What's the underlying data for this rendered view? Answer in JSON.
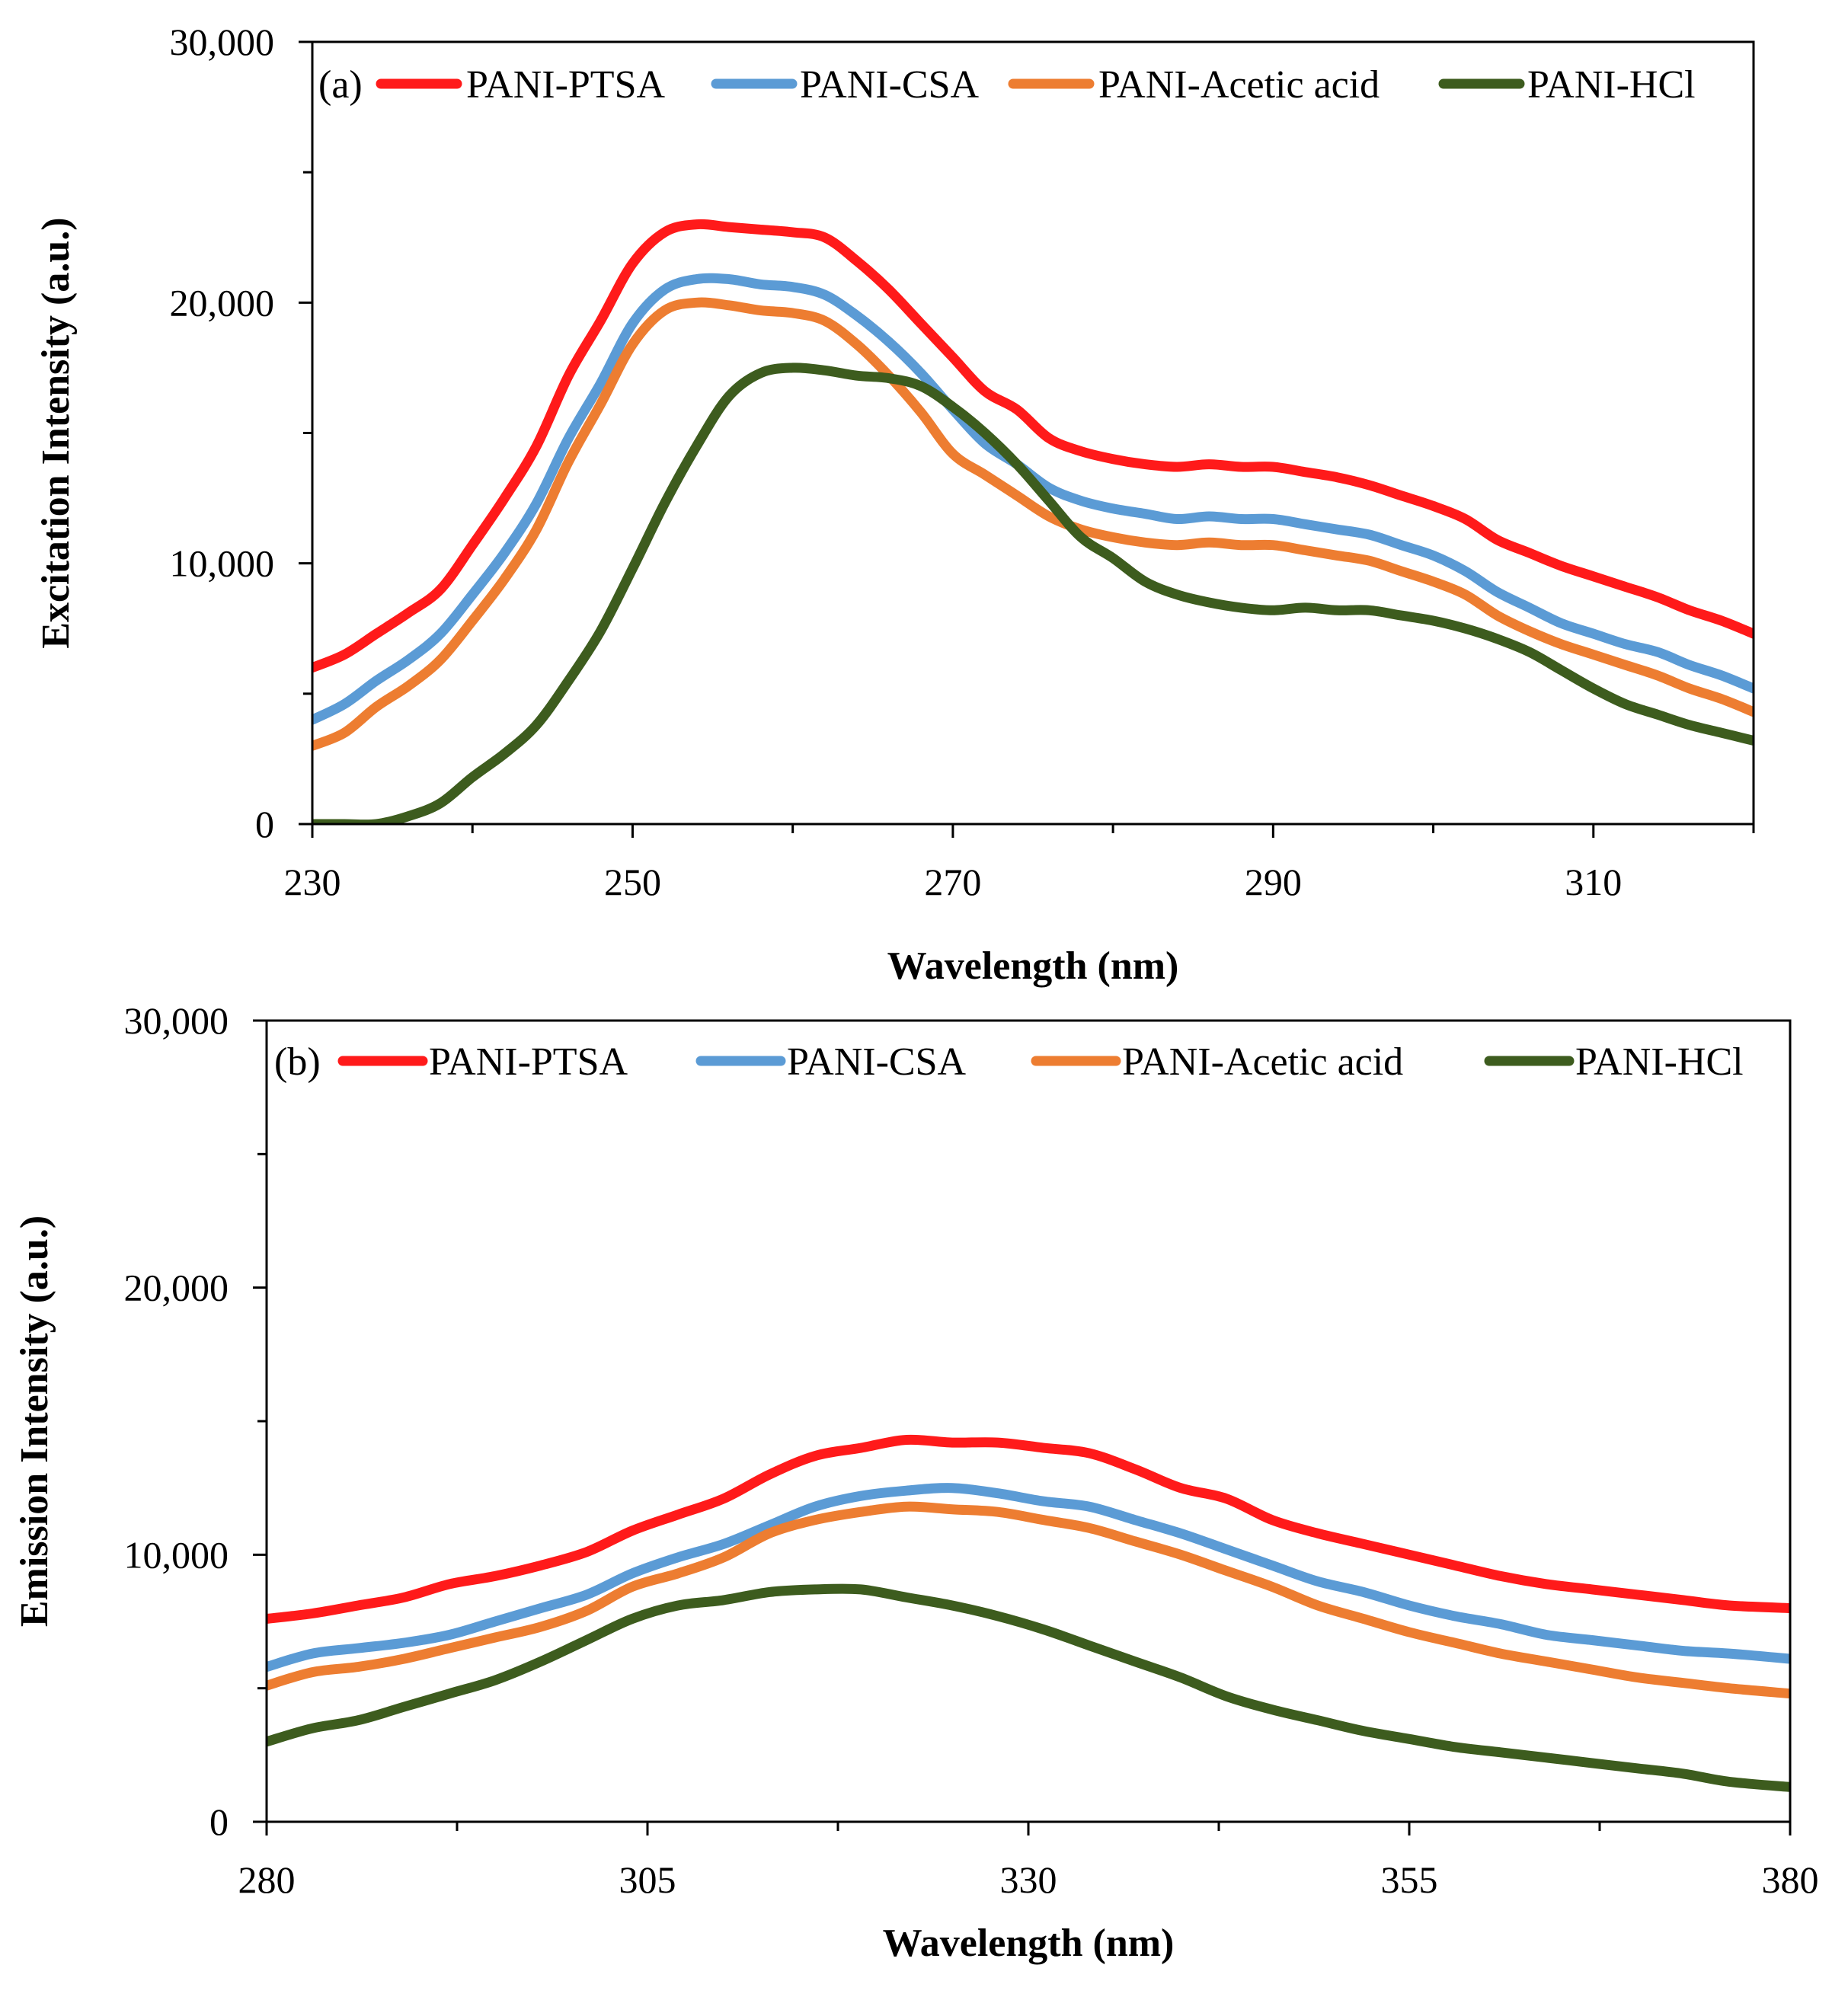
{
  "chart_data": [
    {
      "panel_label": "(a)",
      "type": "line",
      "xlabel": "Wavelength (nm)",
      "ylabel": "Excitation Intensity (a.u.)",
      "xlim": [
        230,
        320
      ],
      "ylim": [
        0,
        30000
      ],
      "xticks": [
        230,
        250,
        270,
        290,
        310
      ],
      "xtick_labels": [
        "230",
        "250",
        "270",
        "290",
        "310"
      ],
      "yticks": [
        0,
        10000,
        20000,
        30000
      ],
      "ytick_labels": [
        "0",
        "10,000",
        "20,000",
        "30,000"
      ],
      "ygrid": false,
      "legend_position": "top",
      "series": [
        {
          "name": "PANI-PTSA",
          "color": "#ff1a1a",
          "x": [
            230,
            232,
            234,
            236,
            238,
            240,
            242,
            244,
            246,
            248,
            250,
            252,
            254,
            256,
            258,
            260,
            262,
            264,
            266,
            268,
            270,
            272,
            274,
            276,
            278,
            280,
            282,
            284,
            286,
            288,
            290,
            292,
            294,
            296,
            298,
            300,
            302,
            304,
            306,
            308,
            310,
            312,
            314,
            316,
            318,
            320
          ],
          "y": [
            6000,
            6500,
            7300,
            8100,
            9000,
            10700,
            12500,
            14500,
            17200,
            19300,
            21500,
            22700,
            23000,
            22900,
            22800,
            22700,
            22500,
            21600,
            20500,
            19200,
            17900,
            16600,
            15900,
            14800,
            14300,
            14000,
            13800,
            13700,
            13800,
            13700,
            13700,
            13500,
            13300,
            13000,
            12600,
            12200,
            11700,
            10900,
            10400,
            9900,
            9500,
            9100,
            8700,
            8200,
            7800,
            7300
          ]
        },
        {
          "name": "PANI-CSA",
          "color": "#5b9bd5",
          "x": [
            230,
            232,
            234,
            236,
            238,
            240,
            242,
            244,
            246,
            248,
            250,
            252,
            254,
            256,
            258,
            260,
            262,
            264,
            266,
            268,
            270,
            272,
            274,
            276,
            278,
            280,
            282,
            284,
            286,
            288,
            290,
            292,
            294,
            296,
            298,
            300,
            302,
            304,
            306,
            308,
            310,
            312,
            314,
            316,
            318,
            320
          ],
          "y": [
            4000,
            4600,
            5500,
            6300,
            7300,
            8800,
            10400,
            12300,
            14800,
            16900,
            19200,
            20500,
            20900,
            20900,
            20700,
            20600,
            20300,
            19500,
            18500,
            17300,
            15900,
            14600,
            13800,
            12900,
            12400,
            12100,
            11900,
            11700,
            11800,
            11700,
            11700,
            11500,
            11300,
            11100,
            10700,
            10300,
            9700,
            8900,
            8300,
            7700,
            7300,
            6900,
            6600,
            6100,
            5700,
            5200
          ]
        },
        {
          "name": "PANI-Acetic acid",
          "color": "#ed7d31",
          "x": [
            230,
            232,
            234,
            236,
            238,
            240,
            242,
            244,
            246,
            248,
            250,
            252,
            254,
            256,
            258,
            260,
            262,
            264,
            266,
            268,
            270,
            272,
            274,
            276,
            278,
            280,
            282,
            284,
            286,
            288,
            290,
            292,
            294,
            296,
            298,
            300,
            302,
            304,
            306,
            308,
            310,
            312,
            314,
            316,
            318,
            320
          ],
          "y": [
            3000,
            3500,
            4500,
            5300,
            6300,
            7800,
            9400,
            11300,
            13900,
            16100,
            18400,
            19700,
            20000,
            19900,
            19700,
            19600,
            19300,
            18400,
            17200,
            15800,
            14200,
            13400,
            12600,
            11800,
            11300,
            11000,
            10800,
            10700,
            10800,
            10700,
            10700,
            10500,
            10300,
            10100,
            9700,
            9300,
            8800,
            8000,
            7400,
            6900,
            6500,
            6100,
            5700,
            5200,
            4800,
            4300
          ]
        },
        {
          "name": "PANI-HCl",
          "color": "#3d5c1e",
          "x": [
            230,
            232,
            234,
            236,
            238,
            240,
            242,
            244,
            246,
            248,
            250,
            252,
            254,
            256,
            258,
            260,
            262,
            264,
            266,
            268,
            270,
            272,
            274,
            276,
            278,
            280,
            282,
            284,
            286,
            288,
            290,
            292,
            294,
            296,
            298,
            300,
            302,
            304,
            306,
            308,
            310,
            312,
            314,
            316,
            318,
            320
          ],
          "y": [
            0,
            0,
            0,
            300,
            800,
            1800,
            2700,
            3800,
            5500,
            7400,
            9800,
            12300,
            14500,
            16400,
            17300,
            17500,
            17400,
            17200,
            17100,
            16800,
            16000,
            15000,
            13800,
            12400,
            11000,
            10200,
            9300,
            8800,
            8500,
            8300,
            8200,
            8300,
            8200,
            8200,
            8000,
            7800,
            7500,
            7100,
            6600,
            5900,
            5200,
            4600,
            4200,
            3800,
            3500,
            3200
          ]
        }
      ]
    },
    {
      "panel_label": "(b)",
      "type": "line",
      "xlabel": "Wavelength (nm)",
      "ylabel": "Emission Intensity (a.u.)",
      "xlim": [
        280,
        380
      ],
      "ylim": [
        0,
        30000
      ],
      "xticks": [
        280,
        305,
        330,
        355,
        380
      ],
      "xtick_labels": [
        "280",
        "305",
        "330",
        "355",
        "380"
      ],
      "yticks": [
        0,
        10000,
        20000,
        30000
      ],
      "ytick_labels": [
        "0",
        "10,000",
        "20,000",
        "30,000"
      ],
      "ygrid": false,
      "legend_position": "top",
      "series": [
        {
          "name": "PANI-PTSA",
          "color": "#ff1a1a",
          "x": [
            280,
            283,
            286,
            289,
            292,
            295,
            298,
            301,
            304,
            307,
            310,
            313,
            316,
            319,
            322,
            325,
            328,
            331,
            334,
            337,
            340,
            343,
            346,
            349,
            352,
            355,
            358,
            361,
            364,
            367,
            370,
            373,
            376,
            380
          ],
          "y": [
            7600,
            7800,
            8100,
            8400,
            8900,
            9200,
            9600,
            10100,
            10900,
            11500,
            12100,
            13000,
            13700,
            14000,
            14300,
            14200,
            14200,
            14000,
            13800,
            13200,
            12500,
            12100,
            11300,
            10800,
            10400,
            10000,
            9600,
            9200,
            8900,
            8700,
            8500,
            8300,
            8100,
            8000
          ]
        },
        {
          "name": "PANI-CSA",
          "color": "#5b9bd5",
          "x": [
            280,
            283,
            286,
            289,
            292,
            295,
            298,
            301,
            304,
            307,
            310,
            313,
            316,
            319,
            322,
            325,
            328,
            331,
            334,
            337,
            340,
            343,
            346,
            349,
            352,
            355,
            358,
            361,
            364,
            367,
            370,
            373,
            376,
            380
          ],
          "y": [
            5800,
            6300,
            6500,
            6700,
            7000,
            7500,
            8000,
            8500,
            9300,
            9900,
            10400,
            11100,
            11800,
            12200,
            12400,
            12500,
            12300,
            12000,
            11800,
            11300,
            10800,
            10200,
            9600,
            9000,
            8600,
            8100,
            7700,
            7400,
            7000,
            6800,
            6600,
            6400,
            6300,
            6100
          ]
        },
        {
          "name": "PANI-Acetic acid",
          "color": "#ed7d31",
          "x": [
            280,
            283,
            286,
            289,
            292,
            295,
            298,
            301,
            304,
            307,
            310,
            313,
            316,
            319,
            322,
            325,
            328,
            331,
            334,
            337,
            340,
            343,
            346,
            349,
            352,
            355,
            358,
            361,
            364,
            367,
            370,
            373,
            376,
            380
          ],
          "y": [
            5100,
            5600,
            5800,
            6100,
            6500,
            6900,
            7300,
            7900,
            8800,
            9300,
            9900,
            10800,
            11300,
            11600,
            11800,
            11700,
            11600,
            11300,
            11000,
            10500,
            10000,
            9400,
            8800,
            8100,
            7600,
            7100,
            6700,
            6300,
            6000,
            5700,
            5400,
            5200,
            5000,
            4800
          ]
        },
        {
          "name": "PANI-HCl",
          "color": "#3d5c1e",
          "x": [
            280,
            283,
            286,
            289,
            292,
            295,
            298,
            301,
            304,
            307,
            310,
            313,
            316,
            319,
            322,
            325,
            328,
            331,
            334,
            337,
            340,
            343,
            346,
            349,
            352,
            355,
            358,
            361,
            364,
            367,
            370,
            373,
            376,
            380
          ],
          "y": [
            3000,
            3500,
            3800,
            4300,
            4800,
            5300,
            6000,
            6800,
            7600,
            8100,
            8300,
            8600,
            8700,
            8700,
            8400,
            8100,
            7700,
            7200,
            6600,
            6000,
            5400,
            4700,
            4200,
            3800,
            3400,
            3100,
            2800,
            2600,
            2400,
            2200,
            2000,
            1800,
            1500,
            1300
          ]
        }
      ]
    }
  ]
}
